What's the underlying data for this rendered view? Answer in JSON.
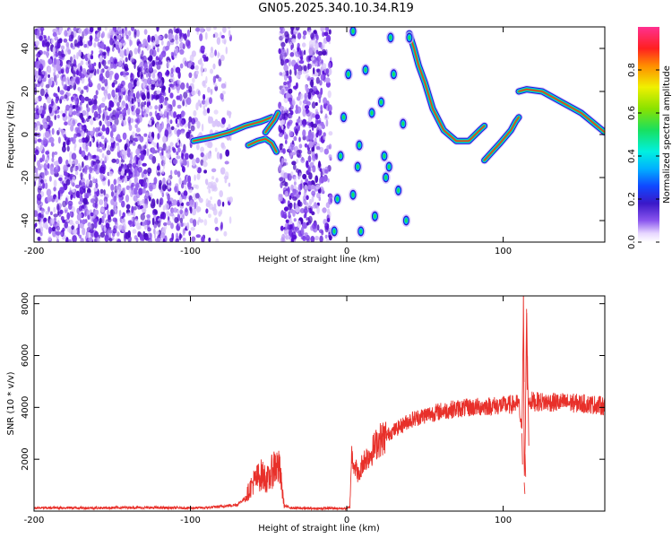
{
  "title": "GN05.2025.340.10.34.R19",
  "chart_data": [
    {
      "type": "heatmap",
      "xlabel": "Height of straight line (km)",
      "ylabel": "Frequency (Hz)",
      "xlim": [
        -200,
        165
      ],
      "ylim": [
        -50,
        50
      ],
      "x_ticks": [
        -200,
        -100,
        0,
        100
      ],
      "y_ticks": [
        -40,
        -20,
        0,
        20,
        40
      ],
      "colorbar": {
        "label": "Normalized spectral amplitude",
        "ticks": [
          "0.0",
          "0.2",
          "0.4",
          "0.6",
          "0.8"
        ],
        "tick_values": [
          0,
          0.2,
          0.4,
          0.6,
          0.8
        ],
        "range": [
          0,
          1
        ]
      },
      "noise_regions": [
        [
          -200,
          -74
        ],
        [
          -43,
          -10
        ]
      ],
      "ridge_segments": [
        {
          "x": [
            -98,
            -85,
            -75,
            -65,
            -55,
            -48
          ],
          "y": [
            -3,
            -1,
            1,
            4,
            6,
            8
          ]
        },
        {
          "x": [
            -63,
            -57,
            -52,
            -48,
            -45
          ],
          "y": [
            -5,
            -3,
            -2,
            -4,
            -8
          ]
        },
        {
          "x": [
            -52,
            -49,
            -46,
            -44
          ],
          "y": [
            1,
            4,
            7,
            10
          ]
        },
        {
          "x": [
            40,
            43,
            46,
            50,
            55,
            62,
            70,
            78,
            85,
            88
          ],
          "y": [
            47,
            40,
            32,
            24,
            12,
            2,
            -3,
            -3,
            2,
            4
          ]
        },
        {
          "x": [
            88,
            93,
            98,
            105,
            108,
            110
          ],
          "y": [
            -12,
            -8,
            -4,
            2,
            6,
            8
          ]
        },
        {
          "x": [
            110,
            115,
            125,
            140,
            150,
            160,
            165
          ],
          "y": [
            20,
            21,
            20,
            14,
            10,
            4,
            1
          ]
        }
      ],
      "discrete_peaks": [
        {
          "x": [
            -8,
            -6,
            -4,
            -2,
            1,
            4,
            7,
            9
          ],
          "y": [
            -45,
            -30,
            -10,
            8,
            28,
            48,
            -15,
            -45
          ]
        },
        {
          "x": [
            4,
            8,
            12,
            16,
            18,
            22,
            25,
            28
          ],
          "y": [
            -28,
            -5,
            30,
            10,
            -38,
            15,
            -20,
            45
          ]
        },
        {
          "x": [
            24,
            27,
            30,
            33,
            36,
            38,
            40
          ],
          "y": [
            -10,
            -15,
            28,
            -26,
            5,
            -40,
            45
          ]
        }
      ]
    },
    {
      "type": "line",
      "xlabel": "Height of straight line (km)",
      "ylabel": "SNR (10 * v/v)",
      "xlim": [
        -200,
        165
      ],
      "ylim": [
        0,
        8300
      ],
      "x_ticks": [
        -200,
        -100,
        0,
        100
      ],
      "y_ticks": [
        2000,
        4000,
        6000,
        8000
      ],
      "series": [
        {
          "color": "#e8302a",
          "x": [
            -200,
            -180,
            -160,
            -140,
            -120,
            -100,
            -90,
            -80,
            -70,
            -65,
            -60,
            -55,
            -50,
            -46,
            -43,
            -40,
            -35,
            -30,
            -20,
            -10,
            0,
            2,
            3,
            5,
            8,
            10,
            15,
            20,
            30,
            40,
            50,
            60,
            70,
            80,
            90,
            100,
            105,
            110,
            112,
            113,
            113.5,
            114,
            115,
            116,
            118,
            120,
            130,
            140,
            150,
            160,
            165
          ],
          "y": [
            120,
            130,
            120,
            140,
            130,
            120,
            130,
            180,
            250,
            500,
            1100,
            1400,
            1200,
            1800,
            1600,
            200,
            120,
            110,
            100,
            110,
            100,
            150,
            2200,
            1800,
            1300,
            1900,
            2200,
            2700,
            3100,
            3500,
            3700,
            3850,
            3950,
            4000,
            4050,
            4080,
            4100,
            4150,
            3000,
            8300,
            1100,
            2200,
            7800,
            4200,
            4250,
            4220,
            4200,
            4180,
            4150,
            4100,
            4050
          ]
        }
      ]
    }
  ]
}
